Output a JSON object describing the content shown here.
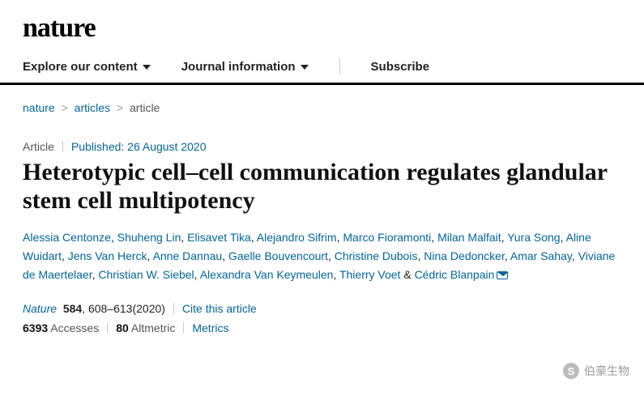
{
  "brand": {
    "logo_text": "nature"
  },
  "nav": {
    "items": [
      {
        "label": "Explore our content",
        "has_dropdown": true
      },
      {
        "label": "Journal information",
        "has_dropdown": true
      },
      {
        "label": "Subscribe",
        "has_dropdown": false
      }
    ]
  },
  "breadcrumb": {
    "items": [
      "nature",
      "articles",
      "article"
    ]
  },
  "article": {
    "type_label": "Article",
    "published_label": "Published: 26 August 2020",
    "title": "Heterotypic cell–cell communication regulates glandular stem cell multipotency",
    "authors": [
      "Alessia Centonze",
      "Shuheng Lin",
      "Elisavet Tika",
      "Alejandro Sifrim",
      "Marco Fioramonti",
      "Milan Malfait",
      "Yura Song",
      "Aline Wuidart",
      "Jens Van Herck",
      "Anne Dannau",
      "Gaelle Bouvencourt",
      "Christine Dubois",
      "Nina Dedoncker",
      "Amar Sahay",
      "Viviane de Maertelaer",
      "Christian W. Siebel",
      "Alexandra Van Keymeulen",
      "Thierry Voet"
    ],
    "corresponding_author": "Cédric Blanpain",
    "citation": {
      "journal": "Nature",
      "volume": "584",
      "pages": "608–613",
      "year": "(2020)",
      "cite_label": "Cite this article"
    },
    "stats": {
      "accesses_count": "6393",
      "accesses_label": "Accesses",
      "altmetric_count": "80",
      "altmetric_label": "Altmetric",
      "metrics_label": "Metrics"
    }
  },
  "watermark": {
    "text": "伯豪生物",
    "icon_glyph": "S"
  },
  "colors": {
    "link": "#006699",
    "text": "#222222",
    "border": "#000000"
  }
}
